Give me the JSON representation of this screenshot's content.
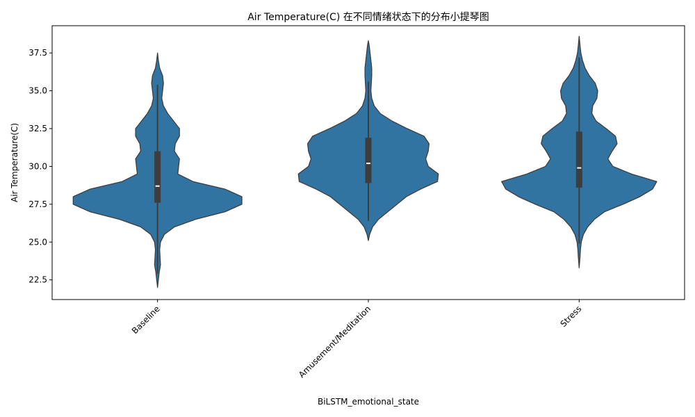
{
  "chart_data": {
    "type": "violin",
    "title": "Air Temperature(C) 在不同情绪状态下的分布小提琴图",
    "xlabel": "BiLSTM_emotional_state",
    "ylabel": "Air Temperature(C)",
    "ylim": [
      21.2,
      39.3
    ],
    "yticks": [
      "22.5",
      "25.0",
      "27.5",
      "30.0",
      "32.5",
      "35.0",
      "37.5"
    ],
    "grid": false,
    "colors": {
      "fill": "#3274a1",
      "edge": "#3d3d3d",
      "box": "#3d3d3d",
      "median": "#ffffff"
    },
    "categories": [
      "Baseline",
      "Amusement/Meditation",
      "Stress"
    ],
    "violins": [
      {
        "category": "Baseline",
        "quartiles": {
          "q1": 27.6,
          "median": 28.7,
          "q3": 31.0
        },
        "whiskers": [
          22.9,
          35.4
        ],
        "density": [
          [
            22.0,
            0.0
          ],
          [
            22.5,
            0.01
          ],
          [
            23.0,
            0.02
          ],
          [
            23.5,
            0.035
          ],
          [
            24.0,
            0.03
          ],
          [
            24.5,
            0.025
          ],
          [
            25.0,
            0.035
          ],
          [
            25.5,
            0.08
          ],
          [
            26.0,
            0.2
          ],
          [
            26.5,
            0.45
          ],
          [
            27.0,
            0.8
          ],
          [
            27.5,
            1.0
          ],
          [
            28.0,
            1.0
          ],
          [
            28.5,
            0.8
          ],
          [
            29.0,
            0.42
          ],
          [
            29.5,
            0.24
          ],
          [
            30.0,
            0.25
          ],
          [
            30.5,
            0.26
          ],
          [
            31.0,
            0.2
          ],
          [
            31.5,
            0.21
          ],
          [
            32.0,
            0.26
          ],
          [
            32.5,
            0.26
          ],
          [
            33.0,
            0.19
          ],
          [
            33.5,
            0.12
          ],
          [
            34.0,
            0.07
          ],
          [
            34.5,
            0.05
          ],
          [
            35.0,
            0.06
          ],
          [
            35.5,
            0.07
          ],
          [
            36.0,
            0.06
          ],
          [
            36.5,
            0.025
          ],
          [
            37.0,
            0.01
          ],
          [
            37.5,
            0.0
          ]
        ]
      },
      {
        "category": "Amusement/Meditation",
        "quartiles": {
          "q1": 28.9,
          "median": 30.2,
          "q3": 31.9
        },
        "whiskers": [
          26.4,
          35.6
        ],
        "density": [
          [
            25.1,
            0.0
          ],
          [
            25.5,
            0.015
          ],
          [
            26.0,
            0.05
          ],
          [
            26.5,
            0.12
          ],
          [
            27.0,
            0.23
          ],
          [
            27.5,
            0.34
          ],
          [
            28.0,
            0.45
          ],
          [
            28.5,
            0.62
          ],
          [
            29.0,
            0.82
          ],
          [
            29.5,
            0.83
          ],
          [
            30.0,
            0.71
          ],
          [
            30.5,
            0.68
          ],
          [
            31.0,
            0.71
          ],
          [
            31.5,
            0.72
          ],
          [
            32.0,
            0.66
          ],
          [
            32.5,
            0.46
          ],
          [
            33.0,
            0.28
          ],
          [
            33.5,
            0.14
          ],
          [
            34.0,
            0.07
          ],
          [
            34.5,
            0.04
          ],
          [
            35.0,
            0.03
          ],
          [
            35.5,
            0.035
          ],
          [
            36.0,
            0.04
          ],
          [
            36.5,
            0.04
          ],
          [
            37.0,
            0.03
          ],
          [
            37.5,
            0.02
          ],
          [
            38.0,
            0.01
          ],
          [
            38.3,
            0.0
          ]
        ]
      },
      {
        "category": "Stress",
        "quartiles": {
          "q1": 28.6,
          "median": 29.9,
          "q3": 32.3
        },
        "whiskers": [
          24.9,
          37.2
        ],
        "density": [
          [
            23.3,
            0.0
          ],
          [
            24.0,
            0.01
          ],
          [
            24.5,
            0.015
          ],
          [
            25.0,
            0.025
          ],
          [
            25.5,
            0.05
          ],
          [
            26.0,
            0.1
          ],
          [
            26.5,
            0.18
          ],
          [
            27.0,
            0.3
          ],
          [
            27.5,
            0.52
          ],
          [
            28.0,
            0.72
          ],
          [
            28.5,
            0.87
          ],
          [
            29.0,
            0.92
          ],
          [
            29.5,
            0.62
          ],
          [
            30.0,
            0.4
          ],
          [
            30.5,
            0.34
          ],
          [
            31.0,
            0.39
          ],
          [
            31.5,
            0.45
          ],
          [
            32.0,
            0.43
          ],
          [
            32.5,
            0.32
          ],
          [
            33.0,
            0.2
          ],
          [
            33.5,
            0.15
          ],
          [
            34.0,
            0.16
          ],
          [
            34.5,
            0.21
          ],
          [
            35.0,
            0.22
          ],
          [
            35.5,
            0.19
          ],
          [
            36.0,
            0.12
          ],
          [
            36.5,
            0.07
          ],
          [
            37.0,
            0.04
          ],
          [
            37.5,
            0.02
          ],
          [
            38.0,
            0.01
          ],
          [
            38.6,
            0.0
          ]
        ]
      }
    ]
  }
}
